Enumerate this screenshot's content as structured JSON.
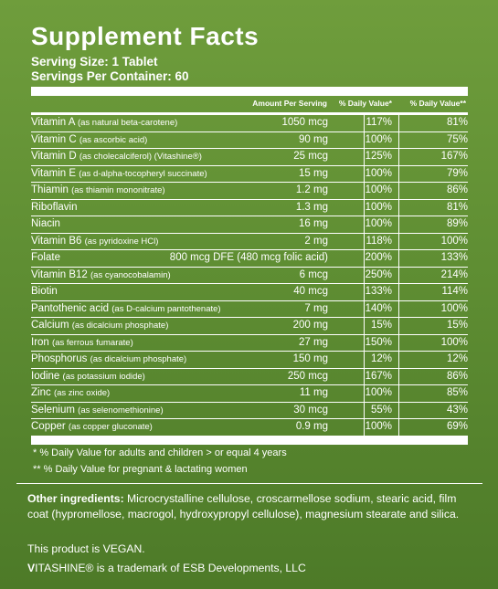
{
  "title": "Supplement Facts",
  "serving_size": "Serving Size: 1 Tablet",
  "servings_per_container": "Servings Per Container: 60",
  "headers": {
    "amount": "Amount Per Serving",
    "dv": "% Daily Value*",
    "dv_pregnant": "% Daily Value**"
  },
  "nutrients": [
    {
      "name": "Vitamin A",
      "source": "(as natural beta-carotene)",
      "amount": "1050 mcg",
      "dv": "117%",
      "dv2": "81%"
    },
    {
      "name": "Vitamin C",
      "source": "(as ascorbic acid)",
      "amount": "90 mg",
      "dv": "100%",
      "dv2": "75%"
    },
    {
      "name": "Vitamin D",
      "source": "(as cholecalciferol) (Vitashine®)",
      "amount": "25 mcg",
      "dv": "125%",
      "dv2": "167%"
    },
    {
      "name": "Vitamin E",
      "source": "(as d-alpha-tocopheryl succinate)",
      "amount": "15 mg",
      "dv": "100%",
      "dv2": "79%"
    },
    {
      "name": "Thiamin",
      "source": "(as thiamin mononitrate)",
      "amount": "1.2 mg",
      "dv": "100%",
      "dv2": "86%"
    },
    {
      "name": "Riboflavin",
      "source": "",
      "amount": "1.3 mg",
      "dv": "100%",
      "dv2": "81%"
    },
    {
      "name": "Niacin",
      "source": "",
      "amount": "16 mg",
      "dv": "100%",
      "dv2": "89%"
    },
    {
      "name": "Vitamin B6",
      "source": "(as pyridoxine HCl)",
      "amount": "2 mg",
      "dv": "118%",
      "dv2": "100%"
    },
    {
      "name": "Folate",
      "source": "",
      "amount": "800 mcg DFE (480 mcg folic acid)",
      "dv": "200%",
      "dv2": "133%"
    },
    {
      "name": "Vitamin B12",
      "source": "(as cyanocobalamin)",
      "amount": "6 mcg",
      "dv": "250%",
      "dv2": "214%"
    },
    {
      "name": "Biotin",
      "source": "",
      "amount": "40 mcg",
      "dv": "133%",
      "dv2": "114%"
    },
    {
      "name": "Pantothenic acid",
      "source": "(as D-calcium pantothenate)",
      "amount": "7 mg",
      "dv": "140%",
      "dv2": "100%"
    },
    {
      "name": "Calcium",
      "source": "(as dicalcium phosphate)",
      "amount": "200 mg",
      "dv": "15%",
      "dv2": "15%"
    },
    {
      "name": "Iron",
      "source": "(as ferrous fumarate)",
      "amount": "27 mg",
      "dv": "150%",
      "dv2": "100%"
    },
    {
      "name": "Phosphorus",
      "source": "(as dicalcium phosphate)",
      "amount": "150 mg",
      "dv": "12%",
      "dv2": "12%"
    },
    {
      "name": "Iodine",
      "source": "(as potassium iodide)",
      "amount": "250 mcg",
      "dv": "167%",
      "dv2": "86%"
    },
    {
      "name": "Zinc",
      "source": "(as zinc oxide)",
      "amount": "11 mg",
      "dv": "100%",
      "dv2": "85%"
    },
    {
      "name": "Selenium",
      "source": "(as selenomethionine)",
      "amount": "30 mcg",
      "dv": "55%",
      "dv2": "43%"
    },
    {
      "name": "Copper",
      "source": "(as copper gluconate)",
      "amount": "0.9 mg",
      "dv": "100%",
      "dv2": "69%"
    }
  ],
  "footnotes": {
    "f1": "* % Daily Value for adults and children > or equal 4 years",
    "f2": "** % Daily Value for pregnant & lactating women"
  },
  "other_ingredients": {
    "label": "Other ingredients:",
    "text": " Microcrystalline cellulose, croscarmellose sodium, stearic acid, film coat (hypromellose, macrogol, hydroxypropyl cellulose), magnesium stearate and silica."
  },
  "vegan": "This product is VEGAN.",
  "trademark": {
    "brand_prefix": "V",
    "brand_rest": "ITASHINE®",
    "text": " is a trademark of ESB Developments, LLC"
  },
  "colors": {
    "background": "#5f8e33",
    "text": "#ffffff"
  }
}
